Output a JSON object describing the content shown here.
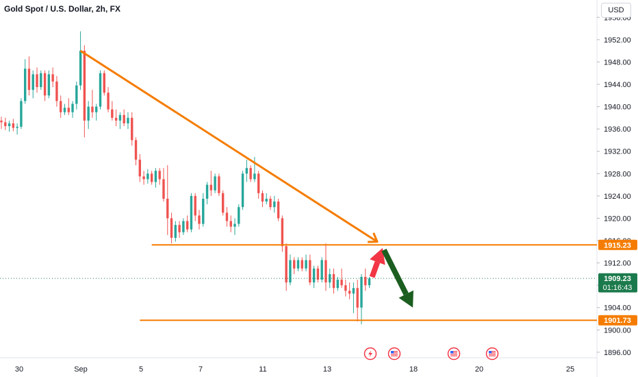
{
  "header": {
    "title": "Gold Spot / U.S. Dollar, 2h, FX",
    "currency_button": "USD"
  },
  "colors": {
    "up": "#26a69a",
    "down": "#ef5350",
    "annotation": "#f57c00",
    "current_price_bg": "#1b7a4c",
    "arrow_up": "#f23645",
    "arrow_down": "#1b5e20"
  },
  "chart_data": {
    "type": "candlestick",
    "symbol": "Gold Spot / U.S. Dollar",
    "interval": "2h",
    "exchange": "FX",
    "x_tick_labels": [
      "30",
      "Sep",
      "5",
      "7",
      "11",
      "13",
      "18",
      "20",
      "25"
    ],
    "y_tick_labels": [
      "1896.00",
      "1900.00",
      "1904.00",
      "1908.00",
      "1912.00",
      "1916.00",
      "1920.00",
      "1924.00",
      "1928.00",
      "1932.00",
      "1936.00",
      "1940.00",
      "1944.00",
      "1948.00",
      "1952.00",
      "1956.00"
    ],
    "ylim": [
      1895,
      1958
    ],
    "price_tags": [
      {
        "label": "1915.23",
        "value": 1915.23
      },
      {
        "label": "1909.23",
        "value": 1909.23,
        "countdown": "01:16:43",
        "current": true
      },
      {
        "label": "1901.73",
        "value": 1901.73
      }
    ],
    "horizontal_lines": [
      {
        "value": 1915.23,
        "from_bar": 38
      },
      {
        "value": 1901.73,
        "from_bar": 35
      }
    ],
    "trendline": {
      "from": {
        "bar": 20,
        "price": 1950.0
      },
      "to": {
        "bar": 95,
        "price": 1915.8
      }
    },
    "projection": {
      "up_to": {
        "bar": 96,
        "price": 1915.3
      },
      "down_to": {
        "bar": 104,
        "price": 1904.0
      }
    },
    "event_icons": [
      "lightning",
      "us-flag",
      "us-flag",
      "us-flag"
    ],
    "candles": [
      [
        1937.5,
        1938.2,
        1936.0,
        1937.2
      ],
      [
        1937.2,
        1938.0,
        1935.8,
        1936.5
      ],
      [
        1936.5,
        1937.5,
        1935.5,
        1937.0
      ],
      [
        1937.0,
        1937.8,
        1935.6,
        1936.2
      ],
      [
        1936.2,
        1937.0,
        1935.0,
        1936.4
      ],
      [
        1936.4,
        1941.5,
        1936.0,
        1941.0
      ],
      [
        1941.0,
        1948.5,
        1940.5,
        1946.8
      ],
      [
        1946.8,
        1949.0,
        1942.0,
        1943.0
      ],
      [
        1943.0,
        1946.5,
        1941.5,
        1945.8
      ],
      [
        1945.8,
        1947.0,
        1942.5,
        1943.5
      ],
      [
        1943.5,
        1946.5,
        1943.0,
        1946.0
      ],
      [
        1946.0,
        1946.5,
        1941.0,
        1942.0
      ],
      [
        1942.0,
        1946.5,
        1941.5,
        1945.8
      ],
      [
        1945.8,
        1947.0,
        1943.5,
        1944.5
      ],
      [
        1944.5,
        1945.5,
        1940.0,
        1941.0
      ],
      [
        1941.0,
        1942.0,
        1938.0,
        1939.0
      ],
      [
        1939.0,
        1940.5,
        1938.5,
        1939.8
      ],
      [
        1939.8,
        1941.5,
        1938.5,
        1939.0
      ],
      [
        1939.0,
        1941.0,
        1938.0,
        1940.5
      ],
      [
        1940.5,
        1944.5,
        1939.5,
        1943.8
      ],
      [
        1943.8,
        1953.5,
        1943.0,
        1950.0
      ],
      [
        1950.0,
        1951.0,
        1934.5,
        1937.5
      ],
      [
        1937.5,
        1941.0,
        1936.0,
        1940.0
      ],
      [
        1940.0,
        1943.0,
        1938.0,
        1939.0
      ],
      [
        1939.0,
        1940.5,
        1937.5,
        1940.0
      ],
      [
        1940.0,
        1946.5,
        1939.5,
        1946.0
      ],
      [
        1946.0,
        1946.5,
        1942.0,
        1942.5
      ],
      [
        1942.5,
        1943.5,
        1939.0,
        1939.5
      ],
      [
        1939.5,
        1941.0,
        1937.5,
        1938.0
      ],
      [
        1938.0,
        1939.5,
        1936.5,
        1937.5
      ],
      [
        1937.5,
        1939.0,
        1936.0,
        1938.5
      ],
      [
        1938.5,
        1939.5,
        1936.5,
        1937.0
      ],
      [
        1937.0,
        1939.0,
        1936.0,
        1938.0
      ],
      [
        1938.0,
        1939.0,
        1933.0,
        1934.0
      ],
      [
        1934.0,
        1934.5,
        1929.5,
        1930.5
      ],
      [
        1930.5,
        1931.5,
        1926.5,
        1927.5
      ],
      [
        1927.5,
        1928.5,
        1926.0,
        1927.0
      ],
      [
        1927.0,
        1928.8,
        1926.2,
        1928.0
      ],
      [
        1928.0,
        1928.5,
        1926.0,
        1926.5
      ],
      [
        1926.5,
        1929.0,
        1925.5,
        1928.5
      ],
      [
        1928.5,
        1929.0,
        1926.0,
        1927.0
      ],
      [
        1927.0,
        1929.0,
        1923.0,
        1923.5
      ],
      [
        1923.5,
        1929.5,
        1917.0,
        1920.0
      ],
      [
        1920.0,
        1921.0,
        1915.5,
        1916.5
      ],
      [
        1916.5,
        1919.5,
        1915.8,
        1918.8
      ],
      [
        1918.8,
        1919.5,
        1916.5,
        1917.5
      ],
      [
        1917.5,
        1920.0,
        1917.0,
        1919.5
      ],
      [
        1919.5,
        1920.5,
        1917.5,
        1918.0
      ],
      [
        1918.0,
        1924.5,
        1917.5,
        1924.0
      ],
      [
        1924.0,
        1924.5,
        1919.5,
        1920.5
      ],
      [
        1920.5,
        1921.5,
        1918.0,
        1919.0
      ],
      [
        1919.0,
        1924.5,
        1918.5,
        1923.5
      ],
      [
        1923.5,
        1926.5,
        1922.5,
        1926.0
      ],
      [
        1926.0,
        1928.5,
        1924.0,
        1925.0
      ],
      [
        1925.0,
        1928.0,
        1924.5,
        1927.5
      ],
      [
        1927.5,
        1928.0,
        1924.0,
        1924.5
      ],
      [
        1924.5,
        1925.0,
        1920.5,
        1921.0
      ],
      [
        1921.0,
        1922.0,
        1918.5,
        1919.5
      ],
      [
        1919.5,
        1920.5,
        1917.5,
        1918.5
      ],
      [
        1918.5,
        1920.0,
        1917.0,
        1919.0
      ],
      [
        1919.0,
        1922.5,
        1918.5,
        1922.0
      ],
      [
        1922.0,
        1928.5,
        1921.5,
        1928.0
      ],
      [
        1928.0,
        1930.5,
        1926.5,
        1929.0
      ],
      [
        1929.0,
        1929.5,
        1926.5,
        1927.0
      ],
      [
        1927.0,
        1931.0,
        1926.5,
        1928.0
      ],
      [
        1928.0,
        1928.5,
        1923.5,
        1924.5
      ],
      [
        1924.5,
        1925.0,
        1922.0,
        1923.0
      ],
      [
        1923.0,
        1924.5,
        1922.5,
        1923.5
      ],
      [
        1923.5,
        1924.0,
        1921.5,
        1922.0
      ],
      [
        1922.0,
        1924.0,
        1921.0,
        1923.0
      ],
      [
        1923.0,
        1923.5,
        1919.5,
        1920.0
      ],
      [
        1920.0,
        1920.5,
        1914.0,
        1915.0
      ],
      [
        1915.0,
        1915.5,
        1907.0,
        1908.5
      ],
      [
        1908.5,
        1913.5,
        1908.0,
        1912.5
      ],
      [
        1912.5,
        1913.0,
        1910.0,
        1911.0
      ],
      [
        1911.0,
        1913.0,
        1910.5,
        1912.5
      ],
      [
        1912.5,
        1913.0,
        1910.5,
        1911.0
      ],
      [
        1911.0,
        1913.5,
        1910.5,
        1912.5
      ],
      [
        1912.5,
        1913.5,
        1908.0,
        1908.5
      ],
      [
        1908.5,
        1911.5,
        1907.5,
        1911.0
      ],
      [
        1911.0,
        1911.5,
        1908.5,
        1909.0
      ],
      [
        1909.0,
        1913.0,
        1908.5,
        1912.5
      ],
      [
        1912.5,
        1915.5,
        1907.0,
        1908.5
      ],
      [
        1908.5,
        1911.0,
        1907.5,
        1910.0
      ],
      [
        1910.0,
        1911.0,
        1906.5,
        1907.5
      ],
      [
        1907.5,
        1909.5,
        1907.0,
        1909.0
      ],
      [
        1909.0,
        1911.0,
        1907.5,
        1908.0
      ],
      [
        1908.0,
        1909.0,
        1906.0,
        1907.0
      ],
      [
        1907.0,
        1908.5,
        1905.5,
        1906.5
      ],
      [
        1906.5,
        1908.5,
        1903.0,
        1907.5
      ],
      [
        1907.5,
        1909.0,
        1901.5,
        1904.0
      ],
      [
        1904.0,
        1910.0,
        1901.0,
        1909.5
      ],
      [
        1909.5,
        1911.0,
        1907.0,
        1908.0
      ],
      [
        1908.0,
        1909.5,
        1907.5,
        1909.23
      ]
    ]
  }
}
